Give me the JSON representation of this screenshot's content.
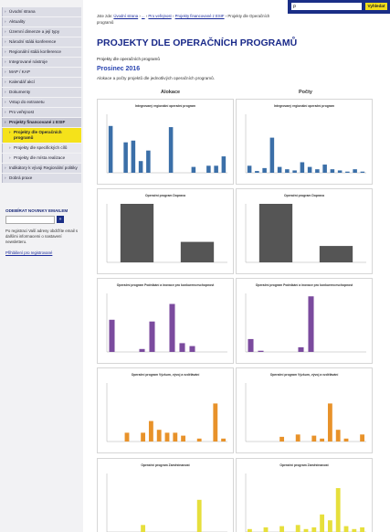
{
  "search": {
    "placeholder": "ρ",
    "button": "Vyhledat"
  },
  "nav": [
    "Úvodní strana",
    "Aktuality",
    "Územní dimenze a její typy",
    "Národní stálá konference",
    "Regionální stálá konference",
    "Integrované nástroje",
    "MAP / KAP",
    "Kalendář akcí",
    "Dokumenty",
    "Vstup do extranetu",
    "Pro veřejnost",
    "Projekty financované z ESIF",
    "Projekty dle Operačních programů",
    "Projekty dle specifických cílů",
    "Projekty dle místa realizace",
    "Indikátory k vývoji Regionální politiky",
    "Dobrá praxe"
  ],
  "newsletter": {
    "title": "ODEBÍRAT NOVINKY EMAILEM",
    "button": "»",
    "note": "Po registraci Vaší adresy obdržíte email s dalšími informacemi o nastavení newsletteru.",
    "login": "Přihlášení pro registrované"
  },
  "breadcrumb": {
    "prefix": "Jste zde:",
    "items": [
      "Úvodní strana",
      "...",
      "Pro veřejnost",
      "Projekty financované z ESIF",
      "Projekty dle Operačních programů"
    ]
  },
  "title": "PROJEKTY DLE OPERAČNÍCH PROGRAMŮ",
  "subtitle": "Projekty dle operačních programů",
  "period": "Prosinec 2016",
  "description": "Alokace a počty projektů dle jednotlivých operačních programů.",
  "columns": [
    "Alokace",
    "Počty"
  ],
  "charts": [
    {
      "type": "bar",
      "title": "Integrovaný regionální operační program",
      "color": "#3b6fa8",
      "ylim": [
        0,
        100
      ],
      "values": [
        80,
        0,
        52,
        55,
        20,
        38,
        0,
        0,
        78,
        0,
        0,
        10,
        0,
        12,
        12,
        28
      ]
    },
    {
      "type": "bar",
      "title": "Integrovaný regionální operační program",
      "color": "#3b6fa8",
      "ylim": [
        0,
        100
      ],
      "values": [
        12,
        3,
        8,
        60,
        10,
        6,
        4,
        18,
        10,
        6,
        14,
        6,
        4,
        2,
        6,
        2
      ]
    },
    {
      "type": "bar",
      "title": "Operační program Doprava",
      "color": "#555555",
      "ylim": [
        0,
        100
      ],
      "values": [
        100,
        35
      ]
    },
    {
      "type": "bar",
      "title": "Operační program Doprava",
      "color": "#555555",
      "ylim": [
        0,
        100
      ],
      "values": [
        100,
        28
      ]
    },
    {
      "type": "bar",
      "title": "Operační program Podnikání a inovace pro konkurenceschopnost",
      "color": "#7b4b9e",
      "ylim": [
        0,
        100
      ],
      "values": [
        55,
        0,
        0,
        5,
        52,
        0,
        82,
        15,
        10,
        0,
        0,
        0
      ]
    },
    {
      "type": "bar",
      "title": "Operační program Podnikání a inovace pro konkurenceschopnost",
      "color": "#7b4b9e",
      "ylim": [
        0,
        100
      ],
      "values": [
        22,
        2,
        0,
        0,
        0,
        8,
        95,
        0,
        0,
        0,
        0,
        0
      ]
    },
    {
      "type": "bar",
      "title": "Operační program Výzkum, vývoj a vzdělávání",
      "color": "#e8922a",
      "ylim": [
        0,
        100
      ],
      "values": [
        0,
        0,
        15,
        0,
        15,
        35,
        20,
        15,
        15,
        10,
        0,
        5,
        0,
        65,
        5
      ]
    },
    {
      "type": "bar",
      "title": "Operační program Výzkum, vývoj a vzdělávání",
      "color": "#e8922a",
      "ylim": [
        0,
        100
      ],
      "values": [
        0,
        0,
        0,
        0,
        8,
        0,
        12,
        0,
        10,
        5,
        65,
        20,
        5,
        0,
        12
      ]
    },
    {
      "type": "bar",
      "title": "Operační program Zaměstnanost",
      "color": "#e6df3c",
      "ylim": [
        0,
        100
      ],
      "values": [
        0,
        0,
        0,
        0,
        12,
        0,
        0,
        0,
        0,
        0,
        0,
        55,
        0,
        0,
        0
      ]
    },
    {
      "type": "bar",
      "title": "Operační program Zaměstnanost",
      "color": "#e6df3c",
      "ylim": [
        0,
        100
      ],
      "values": [
        5,
        0,
        8,
        0,
        10,
        0,
        12,
        5,
        8,
        30,
        20,
        75,
        10,
        5,
        8
      ]
    }
  ]
}
